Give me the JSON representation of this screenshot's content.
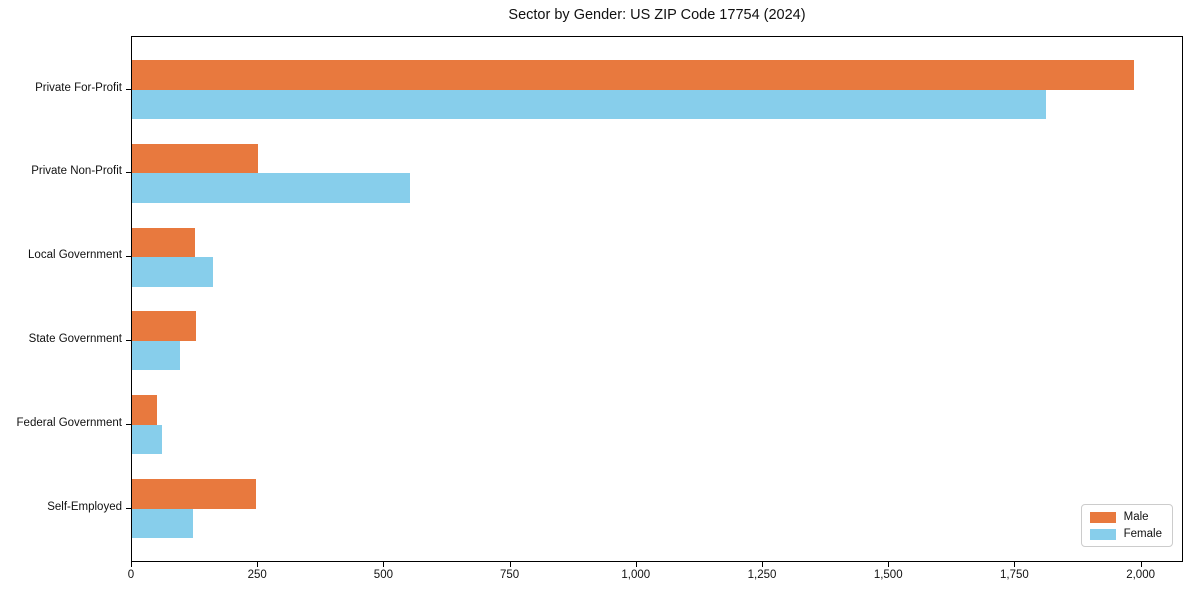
{
  "figure": {
    "title": "Sector by Gender: US ZIP Code 17754 (2024)"
  },
  "chart_data": {
    "type": "bar",
    "orientation": "horizontal",
    "title": "Sector by Gender: US ZIP Code 17754 (2024)",
    "categories": [
      "Private For-Profit",
      "Private Non-Profit",
      "Local Government",
      "State Government",
      "Federal Government",
      "Self-Employed"
    ],
    "series": [
      {
        "name": "Male",
        "color": "#e8793e",
        "values": [
          1985,
          250,
          125,
          127,
          50,
          245
        ]
      },
      {
        "name": "Female",
        "color": "#87ceeb",
        "values": [
          1810,
          550,
          160,
          95,
          60,
          120
        ]
      }
    ],
    "xlabel": "",
    "ylabel": "",
    "xlim": [
      0,
      2080
    ],
    "xticks": [
      0,
      250,
      500,
      750,
      1000,
      1250,
      1500,
      1750,
      2000
    ],
    "xtick_labels": [
      "0",
      "250",
      "500",
      "750",
      "1,000",
      "1,250",
      "1,500",
      "1,750",
      "2,000"
    ],
    "grid": false,
    "legend": {
      "position": "lower right"
    }
  }
}
